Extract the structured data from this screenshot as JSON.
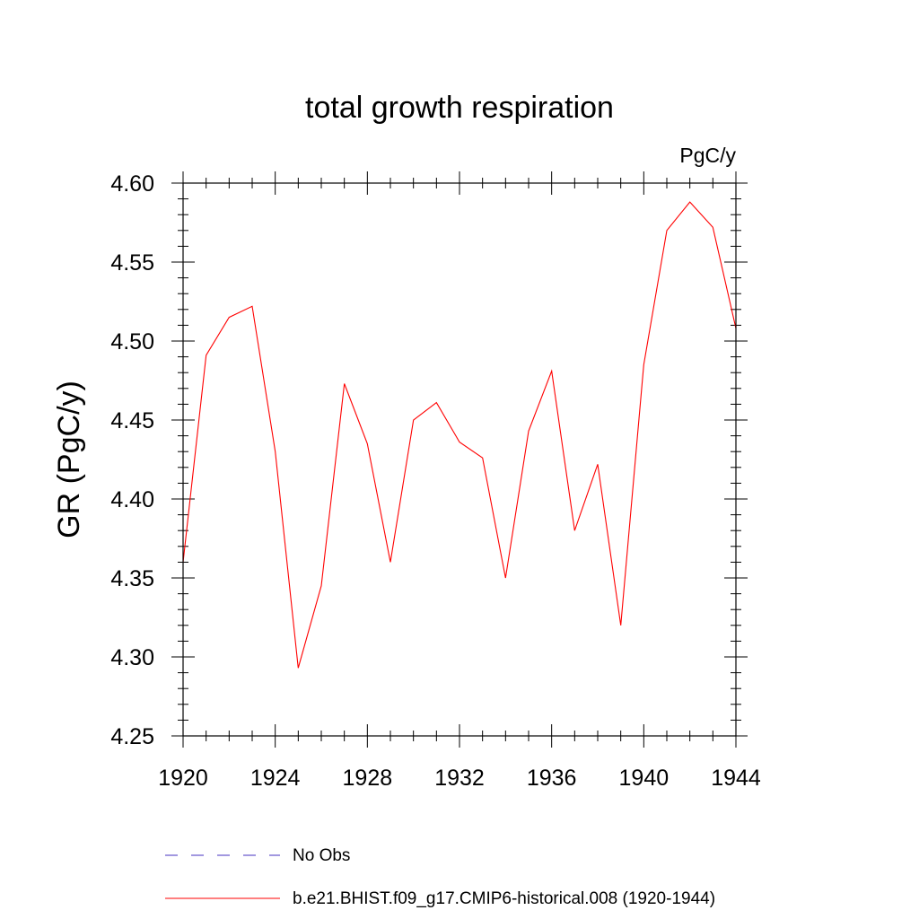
{
  "chart_data": {
    "type": "line",
    "title": "total growth respiration",
    "units_label": "PgC/y",
    "ylabel": "GR  (PgC/y)",
    "xlabel": "",
    "xlim": [
      1920,
      1944
    ],
    "ylim": [
      4.25,
      4.6
    ],
    "x_ticks": [
      1920,
      1924,
      1928,
      1932,
      1936,
      1940,
      1944
    ],
    "x_tick_labels": [
      "1920",
      "1924",
      "1928",
      "1932",
      "1936",
      "1940",
      "1944"
    ],
    "y_ticks": [
      4.25,
      4.3,
      4.35,
      4.4,
      4.45,
      4.5,
      4.55,
      4.6
    ],
    "y_tick_labels": [
      "4.25",
      "4.30",
      "4.35",
      "4.40",
      "4.45",
      "4.50",
      "4.55",
      "4.60"
    ],
    "grid": false,
    "legend_position": "bottom",
    "series": [
      {
        "name": "b.e21.BHIST.f09_g17.CMIP6-historical.008 (1920-1944)",
        "color": "#ff0000",
        "style": "solid",
        "x": [
          1920,
          1921,
          1922,
          1923,
          1924,
          1925,
          1926,
          1927,
          1928,
          1929,
          1930,
          1931,
          1932,
          1933,
          1934,
          1935,
          1936,
          1937,
          1938,
          1939,
          1940,
          1941,
          1942,
          1943,
          1944
        ],
        "y": [
          4.36,
          4.491,
          4.515,
          4.522,
          4.43,
          4.293,
          4.345,
          4.473,
          4.435,
          4.36,
          4.45,
          4.461,
          4.436,
          4.426,
          4.35,
          4.443,
          4.481,
          4.38,
          4.422,
          4.32,
          4.485,
          4.57,
          4.588,
          4.572,
          4.508
        ]
      }
    ],
    "legend": [
      {
        "label": "No Obs",
        "color": "#6a5acd",
        "style": "dashed"
      },
      {
        "label": "b.e21.BHIST.f09_g17.CMIP6-historical.008 (1920-1944)",
        "color": "#ff0000",
        "style": "solid"
      }
    ]
  }
}
